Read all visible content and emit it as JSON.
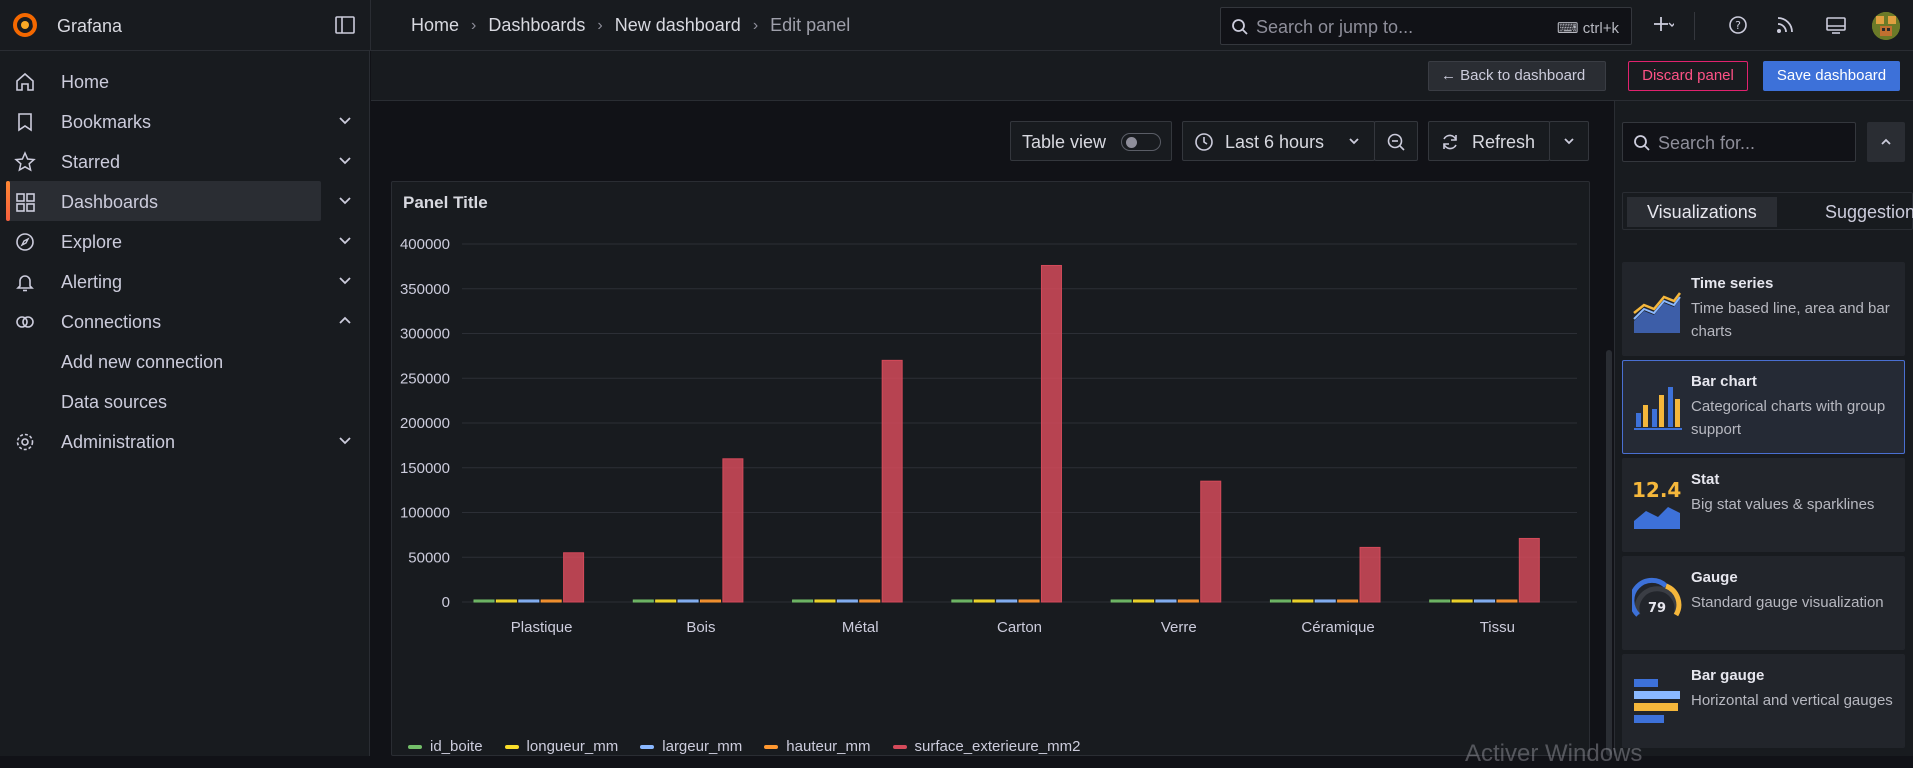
{
  "app": {
    "name": "Grafana"
  },
  "breadcrumb": [
    "Home",
    "Dashboards",
    "New dashboard",
    "Edit panel"
  ],
  "search": {
    "placeholder": "Search or jump to...",
    "shortcut": "ctrl+k"
  },
  "sidebar": {
    "items": [
      {
        "label": "Home",
        "icon": "home-icon"
      },
      {
        "label": "Bookmarks",
        "icon": "bookmark-icon"
      },
      {
        "label": "Starred",
        "icon": "star-icon"
      },
      {
        "label": "Dashboards",
        "icon": "apps-icon"
      },
      {
        "label": "Explore",
        "icon": "compass-icon"
      },
      {
        "label": "Alerting",
        "icon": "bell-icon"
      },
      {
        "label": "Connections",
        "icon": "link-icon"
      },
      {
        "label": "Add new connection"
      },
      {
        "label": "Data sources"
      },
      {
        "label": "Administration",
        "icon": "cog-icon"
      }
    ]
  },
  "actions": {
    "back": "Back to dashboard",
    "discard": "Discard panel",
    "save": "Save dashboard"
  },
  "toolbar": {
    "table_view": "Table view",
    "time_range": "Last 6 hours",
    "refresh": "Refresh"
  },
  "panel": {
    "title": "Panel Title"
  },
  "chart_data": {
    "type": "bar",
    "title": "Panel Title",
    "categories": [
      "Plastique",
      "Bois",
      "Métal",
      "Carton",
      "Verre",
      "Céramique",
      "Tissu"
    ],
    "ylim": [
      0,
      400000
    ],
    "yticks": [
      "0",
      "50000",
      "100000",
      "150000",
      "200000",
      "250000",
      "300000",
      "350000",
      "400000"
    ],
    "grid": true,
    "legend": "bottom-left",
    "series": [
      {
        "name": "id_boite",
        "color": "#73bf69",
        "values": [
          1,
          2,
          3,
          4,
          5,
          6,
          7
        ]
      },
      {
        "name": "longueur_mm",
        "color": "#fade2a",
        "values": [
          300,
          400,
          500,
          600,
          350,
          250,
          280
        ]
      },
      {
        "name": "largeur_mm",
        "color": "#8ab8ff",
        "values": [
          200,
          300,
          400,
          500,
          250,
          200,
          220
        ]
      },
      {
        "name": "hauteur_mm",
        "color": "#ff9830",
        "values": [
          150,
          200,
          300,
          400,
          150,
          150,
          180
        ]
      },
      {
        "name": "surface_exterieure_mm2",
        "color": "#d44a5a",
        "values": [
          55000,
          160000,
          270000,
          376000,
          135000,
          61000,
          71000
        ]
      }
    ]
  },
  "right_pane": {
    "search_placeholder": "Search for...",
    "tabs": [
      "Visualizations",
      "Suggestions"
    ],
    "cards": [
      {
        "name": "Time series",
        "desc": "Time based line, area and bar charts"
      },
      {
        "name": "Bar chart",
        "desc": "Categorical charts with group support"
      },
      {
        "name": "Stat",
        "desc": "Big stat values & sparklines"
      },
      {
        "name": "Gauge",
        "desc": "Standard gauge visualization"
      },
      {
        "name": "Bar gauge",
        "desc": "Horizontal and vertical gauges"
      }
    ],
    "stat_value": "12.4",
    "gauge_value": "79"
  },
  "watermark": "Activer Windows"
}
